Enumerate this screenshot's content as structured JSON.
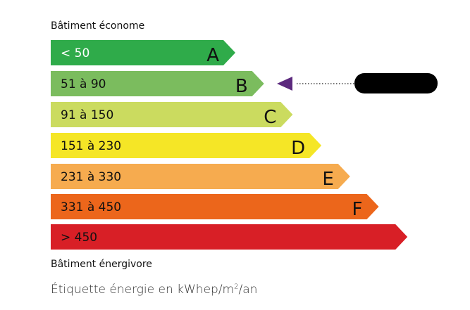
{
  "header": {
    "top_label": "Bâtiment économe",
    "bottom_label": "Bâtiment énergivore"
  },
  "caption": {
    "prefix": "Étiquette énergie en kWhep/m",
    "sup": "2",
    "suffix": "/an"
  },
  "classes": [
    {
      "range": "< 50",
      "letter": "A",
      "color": "#2fab4a",
      "text_color": "#ffffff"
    },
    {
      "range": "51 à 90",
      "letter": "B",
      "color": "#7bbc5e",
      "text_color": "#111111"
    },
    {
      "range": "91 à 150",
      "letter": "C",
      "color": "#cbdb5f",
      "text_color": "#111111"
    },
    {
      "range": "151 à 230",
      "letter": "D",
      "color": "#f5e626",
      "text_color": "#111111"
    },
    {
      "range": "231 à 330",
      "letter": "E",
      "color": "#f6ab4f",
      "text_color": "#111111"
    },
    {
      "range": "331 à 450",
      "letter": "F",
      "color": "#ec661b",
      "text_color": "#111111"
    },
    {
      "range": "> 450",
      "letter": "",
      "color": "#d81f26",
      "text_color": "#111111"
    }
  ],
  "indicator": {
    "class": "B",
    "color": "#5c2a7e",
    "value_redacted": true
  }
}
